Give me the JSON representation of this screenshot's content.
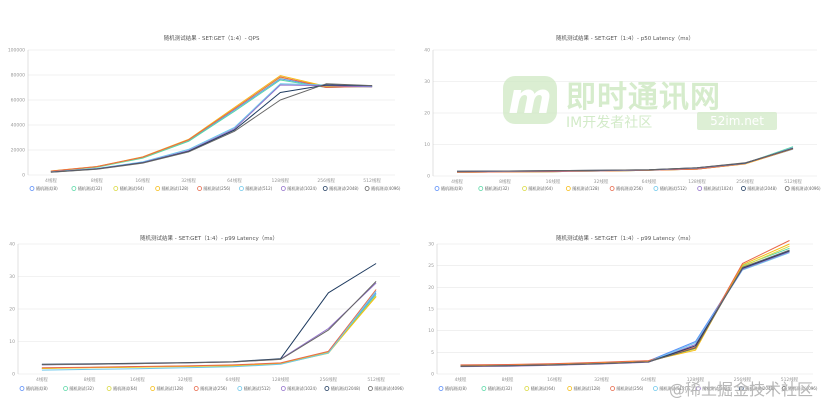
{
  "watermark": {
    "logo_glyph": "m",
    "title": "即时通讯网",
    "subtitle": "IM开发者社区",
    "url": "52im.net",
    "bottom": "@稀土掘金技术社区"
  },
  "legend_labels": [
    "随机测试(8)",
    "随机测试(32)",
    "随机测试(64)",
    "随机测试(128)",
    "随机测试(256)",
    "随机测试(512)",
    "随机测试(1024)",
    "随机测试(2048)",
    "随机测试(4096)"
  ],
  "colors": {
    "series": [
      "#5b8ff9",
      "#5ad8a6",
      "#d9d93f",
      "#f6bd16",
      "#e8684a",
      "#6dc8ec",
      "#9270ca",
      "#1e3a5f",
      "#666666"
    ],
    "grid": "#e6e6e6",
    "axis_text": "#999999",
    "title_text": "#555555"
  },
  "chart_data": [
    {
      "type": "line",
      "title": "随机测试结果 - SET:GET（1:4）- QPS",
      "categories": [
        "4线程",
        "8线程",
        "16线程",
        "32线程",
        "64线程",
        "128线程",
        "256线程",
        "512线程"
      ],
      "y_ticks": [
        "0",
        "20000",
        "40000",
        "60000",
        "80000",
        "100000"
      ],
      "ylim": [
        0,
        100000
      ],
      "grid": true,
      "legend_position": "bottom",
      "series": [
        {
          "name": "随机测试(8)",
          "values": [
            3000,
            6500,
            14000,
            27500,
            52000,
            77000,
            70500,
            70500
          ]
        },
        {
          "name": "随机测试(32)",
          "values": [
            3000,
            6200,
            13500,
            27000,
            51000,
            76000,
            70000,
            71000
          ]
        },
        {
          "name": "随机测试(64)",
          "values": [
            3100,
            6600,
            14200,
            28000,
            53000,
            78000,
            71000,
            71000
          ]
        },
        {
          "name": "随机测试(128)",
          "values": [
            3200,
            6800,
            14500,
            28500,
            54000,
            79500,
            71000,
            70500
          ]
        },
        {
          "name": "随机测试(256)",
          "values": [
            3100,
            6700,
            14300,
            28200,
            53000,
            78500,
            70000,
            71000
          ]
        },
        {
          "name": "随机测试(512)",
          "values": [
            2500,
            5200,
            10500,
            20500,
            38000,
            73000,
            72000,
            71000
          ]
        },
        {
          "name": "随机测试(1024)",
          "values": [
            2400,
            5000,
            10000,
            19500,
            37000,
            72000,
            71500,
            70500
          ]
        },
        {
          "name": "随机测试(2048)",
          "values": [
            2300,
            4800,
            9800,
            19000,
            36000,
            66000,
            72000,
            71500
          ]
        },
        {
          "name": "随机测试(4096)",
          "values": [
            2200,
            4600,
            9500,
            18500,
            35000,
            60000,
            73000,
            71500
          ]
        }
      ]
    },
    {
      "type": "line",
      "title": "随机测试结果 - SET:GET（1:4）- p50 Latency（ms）",
      "categories": [
        "4线程",
        "8线程",
        "16线程",
        "32线程",
        "64线程",
        "128线程",
        "256线程",
        "512线程"
      ],
      "y_ticks": [
        "0",
        "10",
        "20",
        "30",
        "40"
      ],
      "ylim": [
        0,
        40
      ],
      "grid": true,
      "legend_position": "bottom",
      "series": [
        {
          "name": "随机测试(8)",
          "values": [
            1.2,
            1.3,
            1.4,
            1.6,
            1.8,
            2.2,
            3.9,
            8.5
          ]
        },
        {
          "name": "随机测试(32)",
          "values": [
            1.2,
            1.3,
            1.4,
            1.6,
            1.8,
            2.3,
            4.0,
            9.3
          ]
        },
        {
          "name": "随机测试(64)",
          "values": [
            1.2,
            1.3,
            1.4,
            1.6,
            1.8,
            2.2,
            3.9,
            8.8
          ]
        },
        {
          "name": "随机测试(128)",
          "values": [
            1.2,
            1.3,
            1.4,
            1.6,
            1.8,
            2.2,
            3.8,
            8.6
          ]
        },
        {
          "name": "随机测试(256)",
          "values": [
            1.2,
            1.3,
            1.4,
            1.6,
            1.8,
            2.2,
            3.9,
            8.7
          ]
        },
        {
          "name": "随机测试(512)",
          "values": [
            1.4,
            1.5,
            1.6,
            1.7,
            1.9,
            2.5,
            4.0,
            9.0
          ]
        },
        {
          "name": "随机测试(1024)",
          "values": [
            1.4,
            1.5,
            1.6,
            1.7,
            1.9,
            2.5,
            4.1,
            8.9
          ]
        },
        {
          "name": "随机测试(2048)",
          "values": [
            1.5,
            1.6,
            1.7,
            1.8,
            2.0,
            2.6,
            4.1,
            8.8
          ]
        },
        {
          "name": "随机测试(4096)",
          "values": [
            1.5,
            1.6,
            1.7,
            1.8,
            2.0,
            2.6,
            4.2,
            8.7
          ]
        }
      ]
    },
    {
      "type": "line",
      "title": "随机测试结果 - SET:GET（1:4）- p99 Latency（ms）",
      "categories": [
        "4线程",
        "8线程",
        "16线程",
        "32线程",
        "64线程",
        "128线程",
        "256线程",
        "512线程"
      ],
      "y_ticks": [
        "0",
        "10",
        "20",
        "30",
        "40"
      ],
      "ylim": [
        0,
        40
      ],
      "grid": true,
      "legend_position": "bottom",
      "series": [
        {
          "name": "随机测试(8)",
          "values": [
            1.8,
            2.0,
            2.2,
            2.4,
            2.7,
            3.3,
            6.8,
            25.0
          ]
        },
        {
          "name": "随机测试(32)",
          "values": [
            1.8,
            2.0,
            2.2,
            2.4,
            2.6,
            3.2,
            6.6,
            24.5
          ]
        },
        {
          "name": "随机测试(64)",
          "values": [
            1.7,
            1.9,
            2.1,
            2.3,
            2.5,
            3.1,
            6.4,
            24.0
          ]
        },
        {
          "name": "随机测试(128)",
          "values": [
            1.8,
            2.0,
            2.2,
            2.4,
            2.7,
            3.2,
            6.7,
            23.8
          ]
        },
        {
          "name": "随机测试(256)",
          "values": [
            1.9,
            2.1,
            2.3,
            2.5,
            2.8,
            3.4,
            7.0,
            26.0
          ]
        },
        {
          "name": "随机测试(512)",
          "values": [
            1.2,
            1.4,
            1.6,
            1.9,
            2.2,
            3.0,
            6.5,
            25.5
          ]
        },
        {
          "name": "随机测试(1024)",
          "values": [
            2.8,
            3.0,
            3.2,
            3.4,
            3.7,
            4.6,
            14.0,
            28.0
          ]
        },
        {
          "name": "随机测试(2048)",
          "values": [
            3.0,
            3.1,
            3.3,
            3.5,
            3.8,
            4.7,
            25.0,
            34.0
          ]
        },
        {
          "name": "随机测试(4096)",
          "values": [
            2.9,
            3.0,
            3.2,
            3.4,
            3.7,
            4.5,
            13.5,
            28.5
          ]
        }
      ]
    },
    {
      "type": "line",
      "title": "随机测试结果 - SET:GET（1:4）- p99 Latency（ms）",
      "categories": [
        "4线程",
        "8线程",
        "16线程",
        "32线程",
        "64线程",
        "128线程",
        "256线程",
        "512线程"
      ],
      "y_ticks": [
        "0",
        "5",
        "10",
        "15",
        "20",
        "25",
        "30"
      ],
      "ylim": [
        0,
        30
      ],
      "grid": true,
      "legend_position": "bottom",
      "series": [
        {
          "name": "随机测试(8)",
          "values": [
            2.0,
            2.1,
            2.3,
            2.6,
            3.0,
            7.5,
            24.5,
            28.5
          ]
        },
        {
          "name": "随机测试(32)",
          "values": [
            1.9,
            2.0,
            2.2,
            2.5,
            2.9,
            6.0,
            25.0,
            29.0
          ]
        },
        {
          "name": "随机测试(64)",
          "values": [
            1.9,
            2.0,
            2.2,
            2.5,
            2.9,
            5.8,
            24.8,
            29.5
          ]
        },
        {
          "name": "随机测试(128)",
          "values": [
            2.0,
            2.1,
            2.3,
            2.6,
            3.0,
            5.5,
            25.2,
            30.0
          ]
        },
        {
          "name": "随机测试(256)",
          "values": [
            2.1,
            2.2,
            2.4,
            2.7,
            3.1,
            6.2,
            25.5,
            30.8
          ]
        },
        {
          "name": "随机测试(512)",
          "values": [
            1.8,
            1.9,
            2.1,
            2.4,
            2.8,
            7.2,
            24.0,
            28.0
          ]
        },
        {
          "name": "随机测试(1024)",
          "values": [
            1.7,
            1.8,
            2.0,
            2.3,
            2.7,
            6.8,
            24.2,
            28.2
          ]
        },
        {
          "name": "随机测试(2048)",
          "values": [
            1.8,
            1.9,
            2.1,
            2.4,
            2.8,
            6.5,
            24.4,
            28.4
          ]
        },
        {
          "name": "随机测试(4096)",
          "values": [
            1.8,
            1.9,
            2.1,
            2.4,
            2.8,
            6.0,
            24.6,
            28.6
          ]
        }
      ]
    }
  ]
}
